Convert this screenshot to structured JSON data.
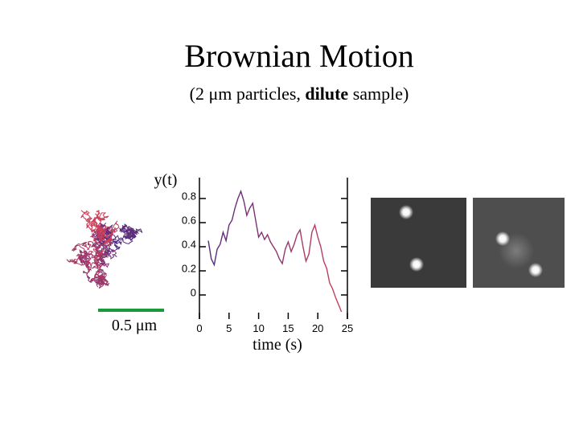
{
  "title": "Brownian Motion",
  "subtitle": {
    "before": "(2 μm particles, ",
    "bold": "dilute",
    "after": " sample)"
  },
  "scale_bar_label": "0.5 μm",
  "chart_data": {
    "type": "line",
    "ylabel": "y(t)",
    "xlabel": "time (s)",
    "x": [
      1.5,
      2,
      2.5,
      3,
      3.5,
      4,
      4.5,
      5,
      5.5,
      6,
      6.5,
      7,
      7.5,
      8,
      8.5,
      9,
      9.5,
      10,
      10.5,
      11,
      11.5,
      12,
      12.5,
      13,
      13.5,
      14,
      14.5,
      15,
      15.5,
      16,
      16.5,
      17,
      17.5,
      18,
      18.5,
      19,
      19.5,
      20,
      20.5,
      21,
      21.5,
      22,
      22.5,
      23,
      23.5,
      24
    ],
    "series": [
      {
        "color": "#4b2a80",
        "end_color": "#d0405a",
        "values": [
          0.45,
          0.3,
          0.25,
          0.38,
          0.42,
          0.52,
          0.45,
          0.58,
          0.62,
          0.72,
          0.8,
          0.86,
          0.78,
          0.66,
          0.72,
          0.76,
          0.62,
          0.48,
          0.52,
          0.46,
          0.5,
          0.44,
          0.4,
          0.36,
          0.3,
          0.26,
          0.38,
          0.44,
          0.36,
          0.42,
          0.5,
          0.54,
          0.4,
          0.28,
          0.34,
          0.52,
          0.58,
          0.48,
          0.4,
          0.28,
          0.22,
          0.1,
          0.05,
          -0.02,
          -0.08,
          -0.14
        ]
      }
    ],
    "xlim": [
      0,
      25
    ],
    "xticks": [
      0,
      5,
      10,
      15,
      20,
      25
    ],
    "ylim": [
      -0.2,
      1.0
    ],
    "yticks": [
      0,
      0.2,
      0.4,
      0.6,
      0.8
    ]
  }
}
